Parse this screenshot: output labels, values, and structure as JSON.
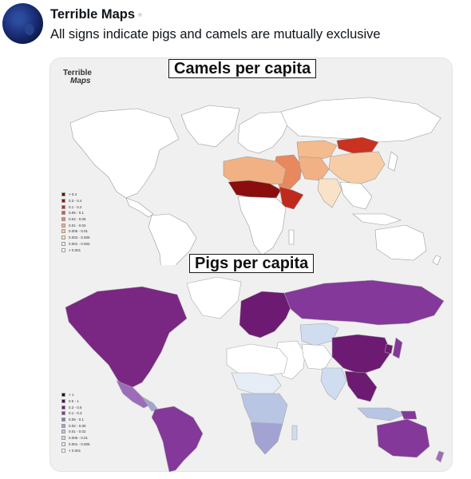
{
  "tweet": {
    "author_name": "Terrible Maps",
    "text": "All signs indicate pigs and camels are mutually exclusive"
  },
  "media": {
    "logo": {
      "line1": "Terrible",
      "line2": "Maps"
    },
    "camels_map": {
      "title": "Camels per capita",
      "legend": [
        {
          "label": "> 0.4",
          "color": "#5c0000"
        },
        {
          "label": "0.3 - 0.4",
          "color": "#8b0e0e"
        },
        {
          "label": "0.1 - 0.2",
          "color": "#c02a1c"
        },
        {
          "label": "0.05 - 0.1",
          "color": "#d9573a"
        },
        {
          "label": "0.02 - 0.05",
          "color": "#e8885e"
        },
        {
          "label": "0.01 - 0.02",
          "color": "#f1b184"
        },
        {
          "label": "0.005 - 0.01",
          "color": "#f6cda6"
        },
        {
          "label": "0.002 - 0.005",
          "color": "#fae2c8"
        },
        {
          "label": "0.001 - 0.002",
          "color": "#fdf0e2"
        },
        {
          "label": "< 0.001",
          "color": "#ffffff"
        }
      ]
    },
    "pigs_map": {
      "title": "Pigs per capita",
      "legend": [
        {
          "label": "> 1",
          "color": "#1a001a"
        },
        {
          "label": "0.5 - 1",
          "color": "#4b0a4b"
        },
        {
          "label": "0.3 - 0.5",
          "color": "#6d1a72"
        },
        {
          "label": "0.1 - 0.3",
          "color": "#84389a"
        },
        {
          "label": "0.05 - 0.1",
          "color": "#9c6cb8"
        },
        {
          "label": "0.02 - 0.05",
          "color": "#a3a3d3"
        },
        {
          "label": "0.01 - 0.02",
          "color": "#b8c6e4"
        },
        {
          "label": "0.005 - 0.01",
          "color": "#d0dcef"
        },
        {
          "label": "0.001 - 0.005",
          "color": "#e6edf7"
        },
        {
          "label": "< 0.001",
          "color": "#ffffff"
        }
      ]
    }
  }
}
